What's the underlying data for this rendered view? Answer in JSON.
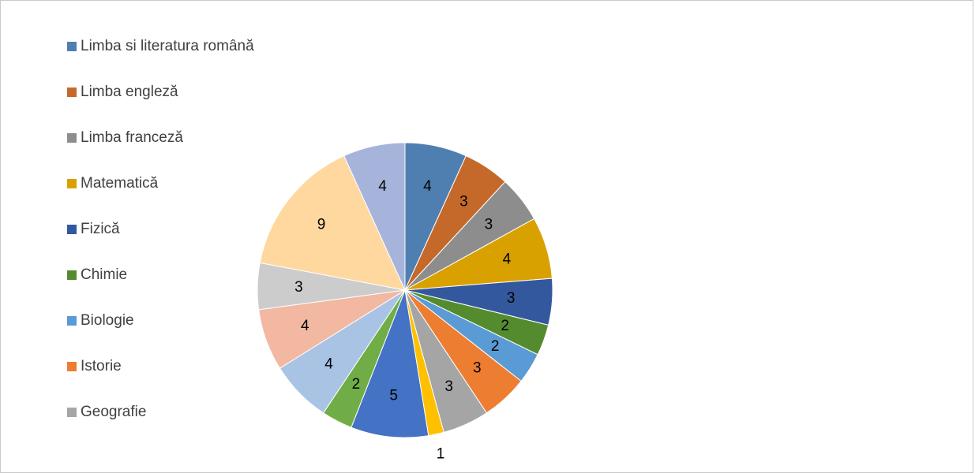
{
  "chart_data": {
    "type": "pie",
    "title": "",
    "legend_position": "left",
    "start_angle_deg": 0,
    "direction": "clockwise",
    "categories": [
      "Limba si literatura română",
      "Limba engleză",
      "Limba franceză",
      "Matematică",
      "Fizică",
      "Chimie",
      "Biologie",
      "Istorie",
      "Geografie",
      "",
      "",
      "",
      "",
      "",
      "",
      "",
      ""
    ],
    "values": [
      4,
      3,
      3,
      4,
      3,
      2,
      2,
      3,
      3,
      1,
      5,
      2,
      4,
      4,
      3,
      9,
      4
    ],
    "colors": [
      "#4e7fb0",
      "#c5692b",
      "#8d8d8d",
      "#d9a100",
      "#34589e",
      "#558b2f",
      "#5a9bd5",
      "#ed7d31",
      "#a5a5a5",
      "#ffc000",
      "#4472c4",
      "#70ad47",
      "#a9c3e5",
      "#f2b8a2",
      "#cccccc",
      "#ffd8a0",
      "#a6b4dc"
    ],
    "legend_count": 9
  }
}
